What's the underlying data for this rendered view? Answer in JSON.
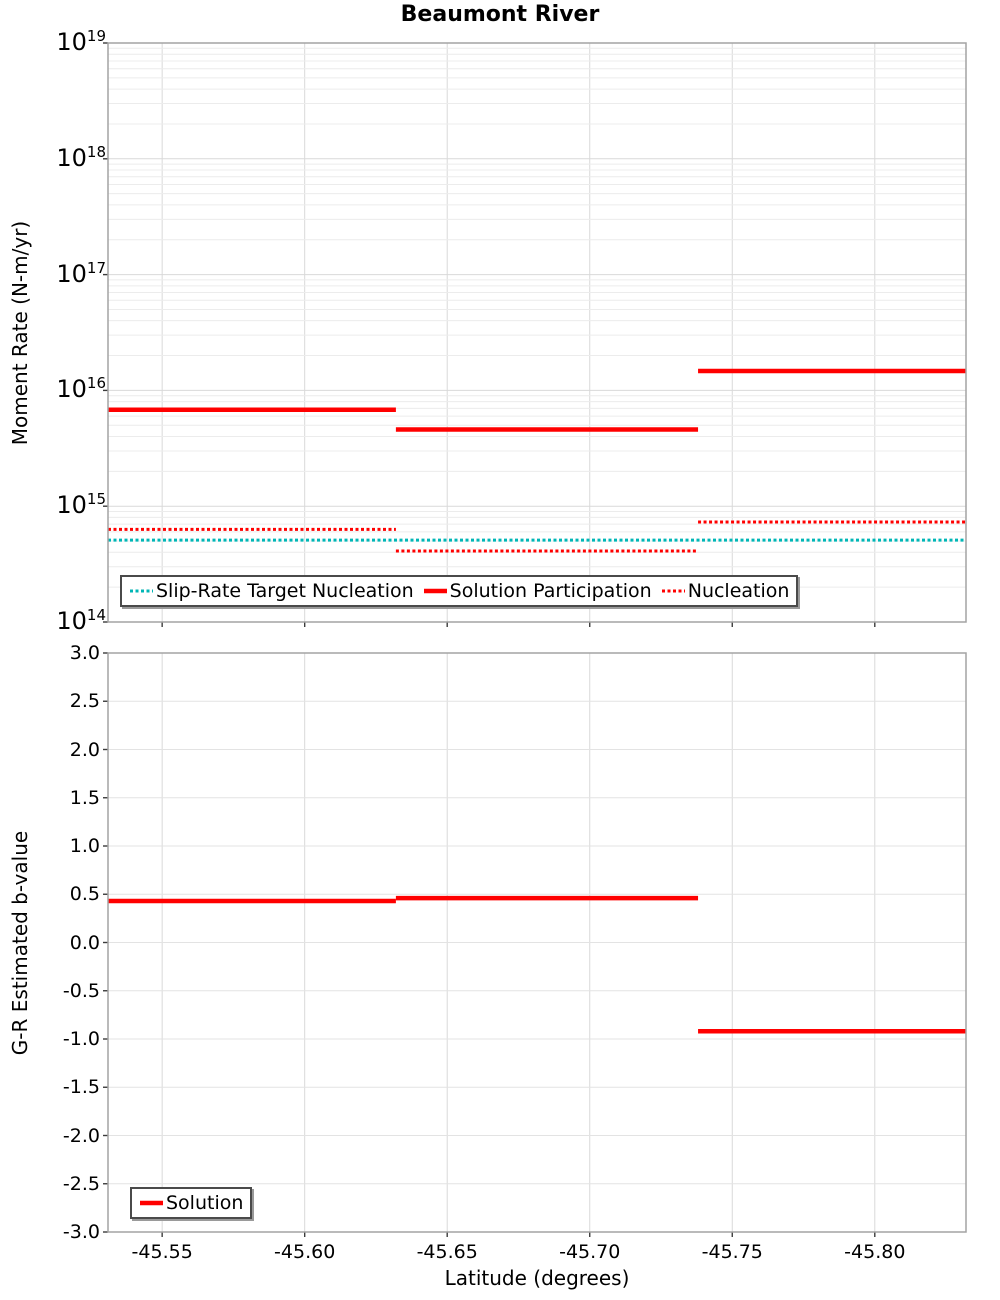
{
  "title": "Beaumont River",
  "chart_data": [
    {
      "type": "line",
      "title": "Beaumont River",
      "xlabel": "",
      "ylabel": "Moment Rate (N-m/yr)",
      "y_scale": "log",
      "ylim": [
        100000000000000.0,
        1e+19
      ],
      "xlim": [
        -45.531,
        -45.832
      ],
      "x_ticks": [
        -45.55,
        -45.6,
        -45.65,
        -45.7,
        -45.75,
        -45.8
      ],
      "x_tick_labels": [
        "-45.55",
        "-45.60",
        "-45.65",
        "-45.70",
        "-45.75",
        "-45.80"
      ],
      "y_tick_exponents": [
        19,
        18,
        17,
        16,
        15,
        14
      ],
      "grid": true,
      "legend_position": "inside-bottom-left",
      "series": [
        {
          "name": "Slip-Rate Target Nucleation",
          "color": "#00b6b6",
          "style": "dotted",
          "segments": [
            {
              "x1": -45.531,
              "x2": -45.832,
              "y": 510000000000000.0
            }
          ]
        },
        {
          "name": "Solution Participation",
          "color": "#ff0000",
          "style": "solid",
          "segments": [
            {
              "x1": -45.531,
              "x2": -45.632,
              "y": 6800000000000000.0
            },
            {
              "x1": -45.632,
              "x2": -45.738,
              "y": 4600000000000000.0
            },
            {
              "x1": -45.738,
              "x2": -45.832,
              "y": 1.47e+16
            }
          ]
        },
        {
          "name": "Nucleation",
          "color": "#ff0000",
          "style": "dotted",
          "segments": [
            {
              "x1": -45.531,
              "x2": -45.632,
              "y": 630000000000000.0
            },
            {
              "x1": -45.632,
              "x2": -45.738,
              "y": 410000000000000.0
            },
            {
              "x1": -45.738,
              "x2": -45.832,
              "y": 730000000000000.0
            }
          ]
        }
      ]
    },
    {
      "type": "line",
      "title": "",
      "xlabel": "Latitude (degrees)",
      "ylabel": "G-R Estimated b-value",
      "y_scale": "linear",
      "ylim": [
        -3.0,
        3.0
      ],
      "xlim": [
        -45.531,
        -45.832
      ],
      "x_ticks": [
        -45.55,
        -45.6,
        -45.65,
        -45.7,
        -45.75,
        -45.8
      ],
      "x_tick_labels": [
        "-45.55",
        "-45.60",
        "-45.65",
        "-45.70",
        "-45.75",
        "-45.80"
      ],
      "y_ticks": [
        3.0,
        2.5,
        2.0,
        1.5,
        1.0,
        0.5,
        0.0,
        -0.5,
        -1.0,
        -1.5,
        -2.0,
        -2.5,
        -3.0
      ],
      "y_tick_labels": [
        "3.0",
        "2.5",
        "2.0",
        "1.5",
        "1.0",
        "0.5",
        "0.0",
        "-0.5",
        "-1.0",
        "-1.5",
        "-2.0",
        "-2.5",
        "-3.0"
      ],
      "grid": true,
      "legend_position": "inside-bottom-left",
      "series": [
        {
          "name": "Solution",
          "color": "#ff0000",
          "style": "solid",
          "segments": [
            {
              "x1": -45.531,
              "x2": -45.632,
              "y": 0.43
            },
            {
              "x1": -45.632,
              "x2": -45.738,
              "y": 0.46
            },
            {
              "x1": -45.738,
              "x2": -45.832,
              "y": -0.92
            }
          ]
        }
      ]
    }
  ],
  "colors": {
    "solution_red": "#ff0000",
    "target_cyan": "#00b6b6",
    "grid_major": "#d9d9d9",
    "grid_minor": "#ececec",
    "frame": "#a3a3a3",
    "tick": "#3c3c3c"
  }
}
